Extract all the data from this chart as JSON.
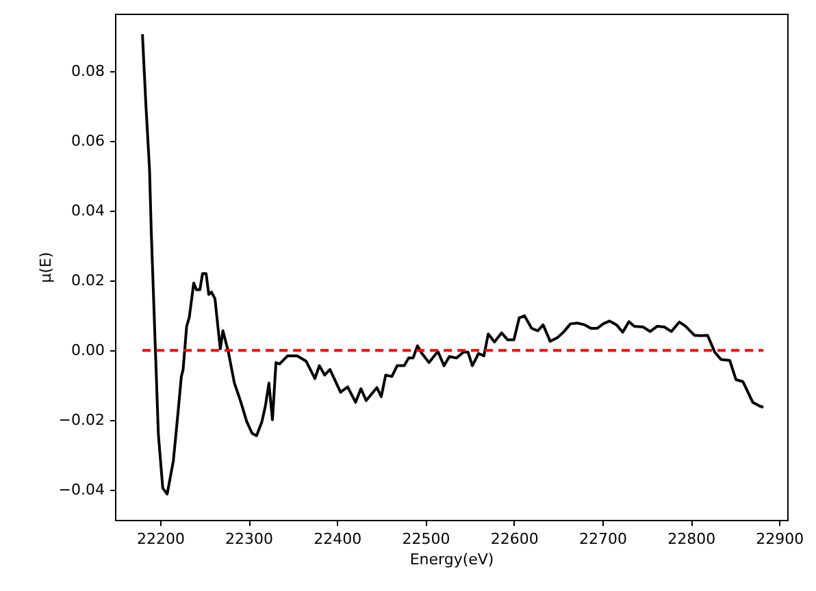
{
  "chart_data": {
    "type": "line",
    "xlabel": "Energy(eV)",
    "ylabel": "μ(E)",
    "xlim": [
      22149,
      22909
    ],
    "xticks": [
      22200,
      22300,
      22400,
      22500,
      22600,
      22700,
      22800,
      22900
    ],
    "ylim": [
      -0.0486,
      0.0965
    ],
    "yticks": [
      {
        "value": -0.04,
        "label": "−0.04"
      },
      {
        "value": -0.02,
        "label": "−0.02"
      },
      {
        "value": 0,
        "label": "0.00"
      },
      {
        "value": 0.02,
        "label": "0.02"
      },
      {
        "value": 0.04,
        "label": "0.04"
      },
      {
        "value": 0.06,
        "label": "0.06"
      },
      {
        "value": 0.08,
        "label": "0.08"
      }
    ],
    "grid": false,
    "marker": "none",
    "series": [
      {
        "color": "#000000",
        "line_style": "solid",
        "x": [
          22180,
          22184,
          22188,
          22190,
          22194,
          22198,
          22203,
          22208,
          22215,
          22220,
          22224,
          22226,
          22230,
          22233,
          22238,
          22241,
          22245,
          22248,
          22252,
          22255,
          22258,
          22262,
          22268,
          22271,
          22277,
          22284,
          22291,
          22298,
          22304,
          22309,
          22315,
          22319,
          22323,
          22327,
          22331,
          22335,
          22344,
          22355,
          22365,
          22375,
          22380,
          22386,
          22392,
          22404,
          22412,
          22421,
          22427,
          22433,
          22445,
          22450,
          22455,
          22462,
          22468,
          22476,
          22481,
          22486,
          22491,
          22496,
          22504,
          22514,
          22521,
          22527,
          22535,
          22543,
          22548,
          22553,
          22560,
          22566,
          22571,
          22578,
          22586,
          22593,
          22600,
          22606,
          22612,
          22620,
          22627,
          22633,
          22641,
          22649,
          22656,
          22664,
          22672,
          22680,
          22687,
          22694,
          22701,
          22708,
          22716,
          22723,
          22730,
          22736,
          22746,
          22754,
          22762,
          22770,
          22778,
          22787,
          22794,
          22804,
          22811,
          22819,
          22827,
          22834,
          22844,
          22851,
          22859,
          22870,
          22878,
          22882
        ],
        "values": [
          0.0906,
          0.07,
          0.052,
          0.034,
          0.005,
          -0.024,
          -0.0395,
          -0.0412,
          -0.0316,
          -0.0185,
          -0.0075,
          -0.0055,
          0.0069,
          0.0095,
          0.0193,
          0.0174,
          0.0174,
          0.022,
          0.022,
          0.016,
          0.0167,
          0.0148,
          0.0004,
          0.0056,
          -0.0003,
          -0.0094,
          -0.0146,
          -0.0205,
          -0.0238,
          -0.0245,
          -0.0205,
          -0.016,
          -0.0094,
          -0.0199,
          -0.0035,
          -0.0039,
          -0.0016,
          -0.0016,
          -0.0031,
          -0.0081,
          -0.0044,
          -0.0071,
          -0.0055,
          -0.012,
          -0.0105,
          -0.0149,
          -0.011,
          -0.0144,
          -0.0107,
          -0.0133,
          -0.0071,
          -0.0075,
          -0.0044,
          -0.0044,
          -0.0022,
          -0.0022,
          0.0013,
          -0.0009,
          -0.0035,
          -0.0003,
          -0.0044,
          -0.0018,
          -0.0022,
          -0.0005,
          -0.0005,
          -0.0044,
          -0.0009,
          -0.0016,
          0.0047,
          0.0024,
          0.005,
          0.003,
          0.003,
          0.0093,
          0.0099,
          0.0063,
          0.0056,
          0.0073,
          0.0026,
          0.0036,
          0.0052,
          0.0076,
          0.0078,
          0.0073,
          0.0063,
          0.0063,
          0.0076,
          0.0084,
          0.0073,
          0.0052,
          0.0082,
          0.0069,
          0.0067,
          0.0054,
          0.0069,
          0.0067,
          0.0054,
          0.0081,
          0.0069,
          0.0043,
          0.0042,
          0.0043,
          -0.0005,
          -0.0026,
          -0.0029,
          -0.0084,
          -0.009,
          -0.0149,
          -0.016,
          -0.0163
        ]
      },
      {
        "color": "#ff0000",
        "line_style": "dashed",
        "x": [
          22180,
          22882
        ],
        "values": [
          0,
          0
        ]
      }
    ]
  }
}
